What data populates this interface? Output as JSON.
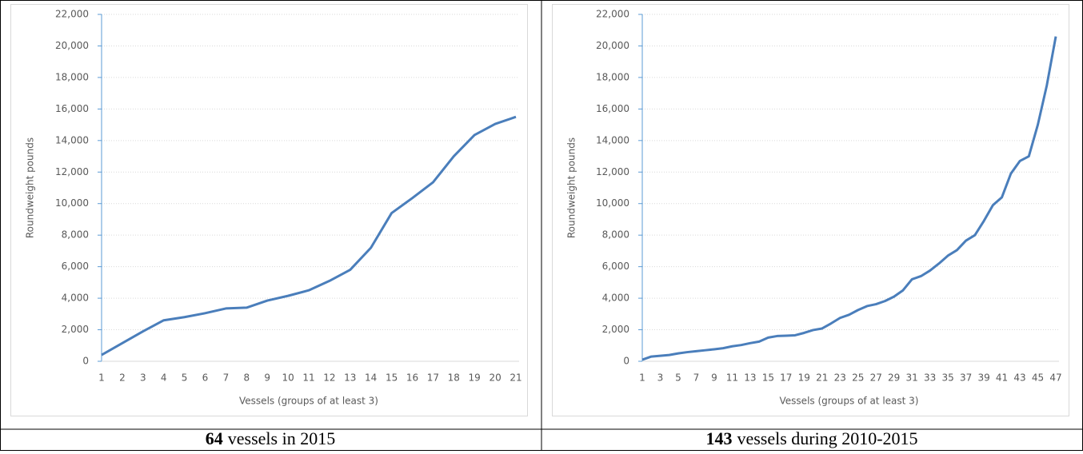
{
  "chart_data": [
    {
      "type": "line",
      "x_label": "Vessels (groups of at least 3)",
      "y_label": "Roundweight pounds",
      "categories": [
        1,
        2,
        3,
        4,
        5,
        6,
        7,
        8,
        9,
        10,
        11,
        12,
        13,
        14,
        15,
        16,
        17,
        18,
        19,
        20,
        21
      ],
      "series": [
        {
          "color": "#4a7ebb",
          "values": [
            400,
            1150,
            1900,
            2600,
            2800,
            3050,
            3350,
            3400,
            3850,
            4150,
            4500,
            5100,
            5800,
            7200,
            9400,
            10350,
            11350,
            13000,
            14350,
            15050,
            15500
          ]
        }
      ],
      "ylim": [
        0,
        22000
      ],
      "yticks": [
        0,
        {
          "value": 2000,
          "label": "2,000"
        },
        {
          "value": 4000,
          "label": "4,000"
        },
        {
          "value": 6000,
          "label": "6,000"
        },
        {
          "value": 8000,
          "label": "8,000"
        },
        {
          "value": 10000,
          "label": "10,000"
        },
        {
          "value": 12000,
          "label": "12,000"
        },
        {
          "value": 14000,
          "label": "14,000"
        },
        {
          "value": 16000,
          "label": "16,000"
        },
        {
          "value": 18000,
          "label": "18,000"
        },
        {
          "value": 20000,
          "label": "20,000"
        },
        {
          "value": 22000,
          "label": "22,000"
        }
      ],
      "grid": true,
      "caption_number": "64",
      "caption_text": "vessels in 2015"
    },
    {
      "type": "line",
      "x_label": "Vessels (groups of at least 3)",
      "y_label": "Roundweight pounds",
      "categories": [
        1,
        null,
        3,
        null,
        5,
        null,
        7,
        null,
        9,
        null,
        11,
        null,
        13,
        null,
        15,
        null,
        17,
        null,
        19,
        null,
        21,
        null,
        23,
        null,
        25,
        null,
        27,
        null,
        29,
        null,
        31,
        null,
        33,
        null,
        35,
        null,
        37,
        null,
        39,
        null,
        41,
        null,
        43,
        null,
        45,
        null,
        47
      ],
      "series": [
        {
          "color": "#4a7ebb",
          "values": [
            100,
            300,
            350,
            400,
            500,
            580,
            640,
            700,
            760,
            830,
            950,
            1030,
            1150,
            1250,
            1500,
            1600,
            1620,
            1650,
            1800,
            1980,
            2080,
            2400,
            2750,
            2950,
            3250,
            3500,
            3620,
            3820,
            4100,
            4500,
            5200,
            5400,
            5750,
            6200,
            6700,
            7050,
            7650,
            8000,
            8900,
            9900,
            10400,
            11900,
            12700,
            13000,
            15000,
            17500,
            20600
          ]
        }
      ],
      "ylim": [
        0,
        22000
      ],
      "yticks": [
        0,
        {
          "value": 2000,
          "label": "2,000"
        },
        {
          "value": 4000,
          "label": "4,000"
        },
        {
          "value": 6000,
          "label": "6,000"
        },
        {
          "value": 8000,
          "label": "8,000"
        },
        {
          "value": 10000,
          "label": "10,000"
        },
        {
          "value": 12000,
          "label": "12,000"
        },
        {
          "value": 14000,
          "label": "14,000"
        },
        {
          "value": 16000,
          "label": "16,000"
        },
        {
          "value": 18000,
          "label": "18,000"
        },
        {
          "value": 20000,
          "label": "20,000"
        },
        {
          "value": 22000,
          "label": "22,000"
        }
      ],
      "grid": true,
      "caption_number": "143",
      "caption_text": "vessels during 2010-2015"
    }
  ]
}
